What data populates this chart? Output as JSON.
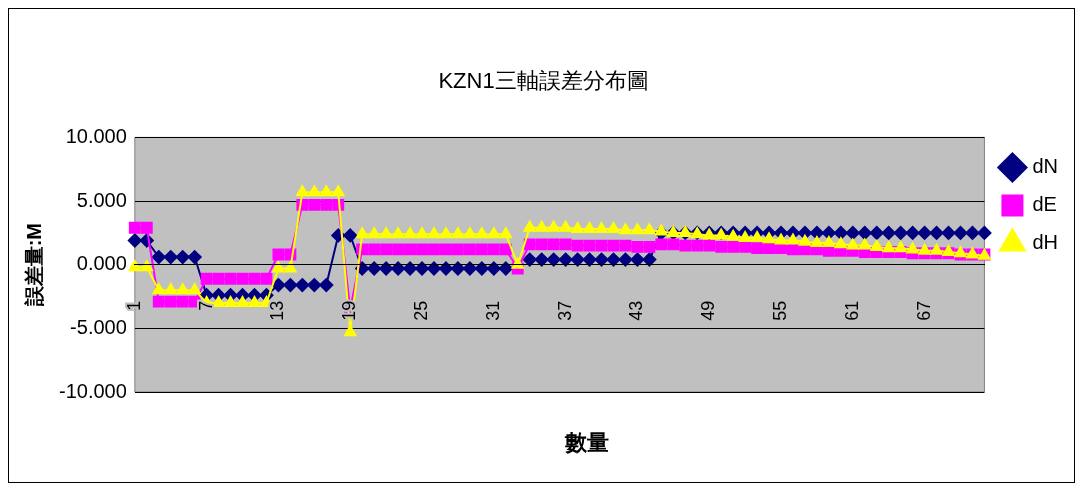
{
  "chart_data": {
    "type": "line",
    "title": "KZN1三軸誤差分布圖",
    "xlabel": "數量",
    "ylabel": "誤差量:M",
    "categories": [
      "1",
      null,
      null,
      null,
      null,
      null,
      "7",
      null,
      null,
      null,
      null,
      null,
      "13",
      null,
      null,
      null,
      null,
      null,
      "19",
      null,
      null,
      null,
      null,
      null,
      "25",
      null,
      null,
      null,
      null,
      null,
      "31",
      null,
      null,
      null,
      null,
      null,
      "37",
      null,
      null,
      null,
      null,
      null,
      "43",
      null,
      null,
      null,
      null,
      null,
      "49",
      null,
      null,
      null,
      null,
      null,
      "55",
      null,
      null,
      null,
      null,
      null,
      "61",
      null,
      null,
      null,
      null,
      null,
      "67",
      null,
      null,
      null,
      null,
      null
    ],
    "ylim": [
      -10,
      10
    ],
    "yticks": [
      {
        "value": -10,
        "label": "-10.000"
      },
      {
        "value": -5,
        "label": "-5.000"
      },
      {
        "value": 0,
        "label": "0.000"
      },
      {
        "value": 5,
        "label": "5.000"
      },
      {
        "value": 10,
        "label": "10.000"
      }
    ],
    "grid": "y",
    "legend": "right",
    "series": [
      {
        "name": "dN",
        "color": "#000080",
        "marker": "diamond",
        "values": [
          1.9,
          1.9,
          0.6,
          0.6,
          0.6,
          0.6,
          -2.4,
          -2.4,
          -2.4,
          -2.4,
          -2.4,
          -2.4,
          -1.6,
          -1.6,
          -1.6,
          -1.6,
          -1.6,
          2.3,
          2.3,
          -0.3,
          -0.3,
          -0.3,
          -0.3,
          -0.3,
          -0.3,
          -0.3,
          -0.3,
          -0.3,
          -0.3,
          -0.3,
          -0.3,
          -0.3,
          null,
          0.4,
          0.4,
          0.4,
          0.4,
          0.4,
          0.4,
          0.4,
          0.4,
          0.4,
          0.4,
          0.4,
          2.5,
          2.5,
          2.5,
          2.5,
          2.5,
          2.5,
          2.5,
          2.5,
          2.5,
          2.5,
          2.5,
          2.5,
          2.5,
          2.5,
          2.5,
          2.5,
          2.5,
          2.5,
          2.5,
          2.5,
          2.5,
          2.5,
          2.5,
          2.5,
          2.5,
          2.5,
          2.5,
          2.5
        ]
      },
      {
        "name": "dE",
        "color": "#ff00ff",
        "marker": "square",
        "values": [
          2.9,
          2.9,
          -2.9,
          -2.9,
          -2.9,
          -2.9,
          -1.1,
          -1.1,
          -1.1,
          -1.1,
          -1.1,
          -1.1,
          0.8,
          0.8,
          4.7,
          4.7,
          4.7,
          4.7,
          -3.5,
          1.2,
          1.2,
          1.2,
          1.2,
          1.2,
          1.2,
          1.2,
          1.2,
          1.2,
          1.2,
          1.2,
          1.2,
          1.2,
          -0.3,
          1.6,
          1.6,
          1.6,
          1.6,
          1.5,
          1.5,
          1.5,
          1.5,
          1.5,
          1.4,
          1.4,
          1.6,
          1.6,
          1.5,
          1.5,
          1.5,
          1.4,
          1.4,
          1.4,
          1.3,
          1.3,
          1.3,
          1.2,
          1.2,
          1.2,
          1.1,
          1.1,
          1.1,
          1.0,
          1.0,
          1.0,
          1.0,
          0.9,
          0.9,
          0.9,
          0.9,
          0.8,
          0.8,
          0.8
        ]
      },
      {
        "name": "dH",
        "color": "#ffff00",
        "marker": "triangle",
        "values": [
          -0.2,
          -0.2,
          -2.0,
          -2.0,
          -2.0,
          -2.0,
          -3.0,
          -3.0,
          -3.0,
          -3.0,
          -3.0,
          -3.0,
          -0.3,
          -0.3,
          5.7,
          5.7,
          5.7,
          5.7,
          -5.3,
          2.4,
          2.4,
          2.4,
          2.4,
          2.4,
          2.4,
          2.4,
          2.4,
          2.4,
          2.4,
          2.4,
          2.4,
          2.4,
          0.0,
          2.9,
          2.9,
          2.9,
          2.9,
          2.8,
          2.8,
          2.8,
          2.8,
          2.7,
          2.7,
          2.7,
          2.6,
          2.5,
          2.5,
          2.4,
          2.3,
          2.3,
          2.2,
          2.1,
          2.1,
          2.0,
          1.9,
          1.9,
          1.8,
          1.7,
          1.7,
          1.6,
          1.5,
          1.5,
          1.4,
          1.3,
          1.3,
          1.2,
          1.1,
          1.1,
          1.0,
          0.9,
          0.8,
          0.7
        ]
      }
    ]
  }
}
